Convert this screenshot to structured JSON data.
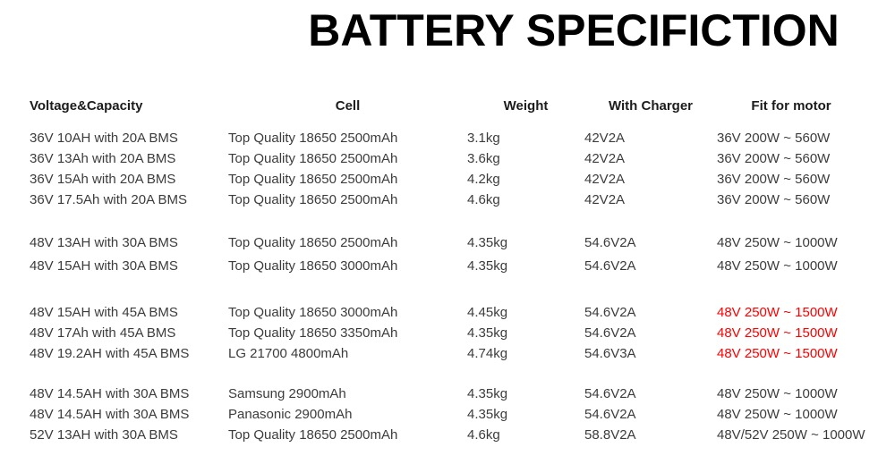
{
  "title": "BATTERY SPECIFICTION",
  "colors": {
    "background": "#ffffff",
    "title_text": "#000000",
    "header_text": "#1c1c1c",
    "body_text": "#3c3c3c",
    "highlight": "#fe0000"
  },
  "table": {
    "headers": [
      "Voltage&Capacity",
      "Cell",
      "Weight",
      "With Charger",
      "Fit for motor"
    ],
    "groups": [
      {
        "rows": [
          {
            "voltage_capacity": "36V 10AH with 20A BMS",
            "cell": "Top Quality 18650 2500mAh",
            "weight": "3.1kg",
            "with_charger": "42V2A",
            "fit_for_motor": "36V 200W ~ 560W",
            "highlight": false
          },
          {
            "voltage_capacity": "36V 13Ah with 20A BMS",
            "cell": "Top Quality 18650 2500mAh",
            "weight": "3.6kg",
            "with_charger": "42V2A",
            "fit_for_motor": "36V 200W ~ 560W",
            "highlight": false
          },
          {
            "voltage_capacity": "36V 15Ah with 20A BMS",
            "cell": "Top Quality 18650 2500mAh",
            "weight": "4.2kg",
            "with_charger": "42V2A",
            "fit_for_motor": "36V 200W ~ 560W",
            "highlight": false
          },
          {
            "voltage_capacity": "36V 17.5Ah with 20A BMS",
            "cell": "Top Quality 18650 2500mAh",
            "weight": "4.6kg",
            "with_charger": "42V2A",
            "fit_for_motor": "36V 200W ~ 560W",
            "highlight": false
          }
        ]
      },
      {
        "rows": [
          {
            "voltage_capacity": "48V 13AH with 30A BMS",
            "cell": "Top Quality 18650 2500mAh",
            "weight": "4.35kg",
            "with_charger": "54.6V2A",
            "fit_for_motor": "48V 250W ~ 1000W",
            "highlight": false
          },
          {
            "voltage_capacity": "48V 15AH with 30A BMS",
            "cell": "Top Quality 18650 3000mAh",
            "weight": "4.35kg",
            "with_charger": "54.6V2A",
            "fit_for_motor": "48V 250W ~ 1000W",
            "highlight": false
          }
        ]
      },
      {
        "rows": [
          {
            "voltage_capacity": "48V 15AH with 45A BMS",
            "cell": "Top Quality 18650 3000mAh",
            "weight": "4.45kg",
            "with_charger": "54.6V2A",
            "fit_for_motor": "48V 250W ~ 1500W",
            "highlight": true
          },
          {
            "voltage_capacity": "48V 17Ah with 45A BMS",
            "cell": "Top Quality 18650 3350mAh",
            "weight": "4.35kg",
            "with_charger": "54.6V2A",
            "fit_for_motor": "48V 250W ~ 1500W",
            "highlight": true
          },
          {
            "voltage_capacity": "48V 19.2AH with 45A BMS",
            "cell": "LG 21700 4800mAh",
            "weight": "4.74kg",
            "with_charger": "54.6V3A",
            "fit_for_motor": "48V 250W ~ 1500W",
            "highlight": true
          }
        ]
      },
      {
        "rows": [
          {
            "voltage_capacity": "48V 14.5AH with 30A BMS",
            "cell": "Samsung 2900mAh",
            "weight": "4.35kg",
            "with_charger": "54.6V2A",
            "fit_for_motor": "48V 250W ~ 1000W",
            "highlight": false
          },
          {
            "voltage_capacity": "48V 14.5AH with 30A BMS",
            "cell": "Panasonic 2900mAh",
            "weight": "4.35kg",
            "with_charger": "54.6V2A",
            "fit_for_motor": "48V 250W ~ 1000W",
            "highlight": false
          },
          {
            "voltage_capacity": "52V 13AH with 30A BMS",
            "cell": "Top Quality 18650 2500mAh",
            "weight": "4.6kg",
            "with_charger": "58.8V2A",
            "fit_for_motor": "48V/52V 250W ~ 1000W",
            "highlight": false
          }
        ]
      }
    ]
  }
}
